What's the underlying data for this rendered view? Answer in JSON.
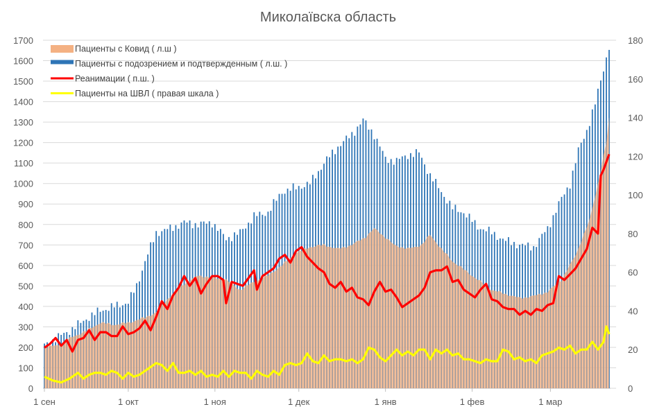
{
  "chart_data": {
    "type": "bar",
    "title": "Миколаївска область",
    "xlabel": "",
    "ylabel": "",
    "y_left": {
      "range": [
        0,
        1700
      ],
      "ticks": [
        0,
        100,
        200,
        300,
        400,
        500,
        600,
        700,
        800,
        900,
        1000,
        1100,
        1200,
        1300,
        1400,
        1500,
        1600,
        1700
      ]
    },
    "y_right": {
      "range": [
        0,
        180
      ],
      "ticks": [
        0,
        20,
        40,
        60,
        80,
        100,
        120,
        140,
        160,
        180
      ]
    },
    "x_ticks": [
      {
        "label": "1 сен",
        "day": 0
      },
      {
        "label": "1 окт",
        "day": 30
      },
      {
        "label": "1 ноя",
        "day": 61
      },
      {
        "label": "1 дек",
        "day": 91
      },
      {
        "label": "1 янв",
        "day": 122
      },
      {
        "label": "1 фев",
        "day": 153
      },
      {
        "label": "1 мар",
        "day": 181
      }
    ],
    "x_range_days": [
      0,
      202
    ],
    "grid": "horizontal",
    "legend_position": "top-left",
    "series": [
      {
        "name": "Пациенты с Ковид ( л.ш )",
        "kind": "area",
        "axis": "left",
        "color": "#f4b183",
        "anchors": [
          [
            0,
            200
          ],
          [
            5,
            210
          ],
          [
            10,
            250
          ],
          [
            15,
            280
          ],
          [
            20,
            320
          ],
          [
            25,
            310
          ],
          [
            30,
            320
          ],
          [
            35,
            340
          ],
          [
            40,
            370
          ],
          [
            45,
            450
          ],
          [
            50,
            510
          ],
          [
            55,
            550
          ],
          [
            60,
            540
          ],
          [
            65,
            530
          ],
          [
            70,
            480
          ],
          [
            75,
            520
          ],
          [
            80,
            550
          ],
          [
            85,
            600
          ],
          [
            90,
            660
          ],
          [
            95,
            690
          ],
          [
            100,
            700
          ],
          [
            105,
            680
          ],
          [
            110,
            700
          ],
          [
            115,
            740
          ],
          [
            118,
            780
          ],
          [
            120,
            760
          ],
          [
            125,
            700
          ],
          [
            130,
            680
          ],
          [
            135,
            700
          ],
          [
            138,
            750
          ],
          [
            142,
            680
          ],
          [
            146,
            620
          ],
          [
            150,
            580
          ],
          [
            155,
            530
          ],
          [
            160,
            480
          ],
          [
            165,
            460
          ],
          [
            170,
            440
          ],
          [
            175,
            450
          ],
          [
            180,
            470
          ],
          [
            185,
            530
          ],
          [
            190,
            650
          ],
          [
            195,
            820
          ],
          [
            198,
            1000
          ],
          [
            201,
            1200
          ],
          [
            202,
            1320
          ]
        ]
      },
      {
        "name": "Пациенты с подозрением и подтвержденным ( л.ш. )",
        "kind": "bar",
        "axis": "left",
        "color": "#2e75b6",
        "anchors": [
          [
            0,
            210
          ],
          [
            5,
            250
          ],
          [
            10,
            290
          ],
          [
            15,
            340
          ],
          [
            20,
            380
          ],
          [
            25,
            400
          ],
          [
            30,
            420
          ],
          [
            33,
            500
          ],
          [
            36,
            620
          ],
          [
            40,
            760
          ],
          [
            45,
            780
          ],
          [
            50,
            810
          ],
          [
            55,
            800
          ],
          [
            60,
            810
          ],
          [
            65,
            730
          ],
          [
            70,
            760
          ],
          [
            75,
            840
          ],
          [
            80,
            860
          ],
          [
            85,
            960
          ],
          [
            90,
            980
          ],
          [
            95,
            1000
          ],
          [
            100,
            1100
          ],
          [
            105,
            1180
          ],
          [
            110,
            1240
          ],
          [
            114,
            1310
          ],
          [
            118,
            1240
          ],
          [
            122,
            1120
          ],
          [
            126,
            1110
          ],
          [
            130,
            1140
          ],
          [
            134,
            1150
          ],
          [
            138,
            1040
          ],
          [
            142,
            960
          ],
          [
            146,
            880
          ],
          [
            150,
            860
          ],
          [
            155,
            790
          ],
          [
            160,
            760
          ],
          [
            165,
            720
          ],
          [
            170,
            700
          ],
          [
            175,
            690
          ],
          [
            180,
            780
          ],
          [
            184,
            900
          ],
          [
            188,
            1000
          ],
          [
            191,
            1160
          ],
          [
            194,
            1260
          ],
          [
            197,
            1390
          ],
          [
            200,
            1560
          ],
          [
            202,
            1670
          ]
        ]
      },
      {
        "name": "Реанимации ( п.ш. )",
        "kind": "line",
        "axis": "right",
        "color": "#ff0000",
        "anchors": [
          [
            0,
            21
          ],
          [
            2,
            23
          ],
          [
            4,
            26
          ],
          [
            6,
            22
          ],
          [
            8,
            25
          ],
          [
            10,
            19
          ],
          [
            12,
            25
          ],
          [
            14,
            26
          ],
          [
            16,
            30
          ],
          [
            18,
            25
          ],
          [
            20,
            29
          ],
          [
            22,
            29
          ],
          [
            24,
            27
          ],
          [
            26,
            27
          ],
          [
            28,
            32
          ],
          [
            30,
            28
          ],
          [
            32,
            29
          ],
          [
            34,
            31
          ],
          [
            36,
            35
          ],
          [
            38,
            30
          ],
          [
            40,
            37
          ],
          [
            42,
            45
          ],
          [
            44,
            41
          ],
          [
            46,
            48
          ],
          [
            48,
            52
          ],
          [
            50,
            58
          ],
          [
            52,
            53
          ],
          [
            54,
            57
          ],
          [
            56,
            49
          ],
          [
            58,
            54
          ],
          [
            60,
            58
          ],
          [
            62,
            58
          ],
          [
            64,
            56
          ],
          [
            65,
            44
          ],
          [
            67,
            55
          ],
          [
            69,
            54
          ],
          [
            71,
            53
          ],
          [
            73,
            57
          ],
          [
            75,
            61
          ],
          [
            76,
            51
          ],
          [
            78,
            58
          ],
          [
            80,
            60
          ],
          [
            82,
            62
          ],
          [
            84,
            67
          ],
          [
            86,
            69
          ],
          [
            88,
            65
          ],
          [
            90,
            71
          ],
          [
            92,
            73
          ],
          [
            94,
            68
          ],
          [
            96,
            65
          ],
          [
            98,
            62
          ],
          [
            100,
            60
          ],
          [
            102,
            54
          ],
          [
            104,
            52
          ],
          [
            106,
            55
          ],
          [
            108,
            50
          ],
          [
            110,
            52
          ],
          [
            112,
            47
          ],
          [
            114,
            46
          ],
          [
            116,
            43
          ],
          [
            118,
            50
          ],
          [
            120,
            55
          ],
          [
            122,
            50
          ],
          [
            124,
            51
          ],
          [
            126,
            47
          ],
          [
            128,
            42
          ],
          [
            130,
            44
          ],
          [
            132,
            46
          ],
          [
            134,
            48
          ],
          [
            136,
            52
          ],
          [
            138,
            60
          ],
          [
            140,
            61
          ],
          [
            142,
            61
          ],
          [
            144,
            63
          ],
          [
            146,
            55
          ],
          [
            148,
            56
          ],
          [
            150,
            51
          ],
          [
            152,
            49
          ],
          [
            154,
            47
          ],
          [
            156,
            51
          ],
          [
            158,
            54
          ],
          [
            160,
            46
          ],
          [
            162,
            45
          ],
          [
            164,
            42
          ],
          [
            166,
            41
          ],
          [
            168,
            41
          ],
          [
            170,
            38
          ],
          [
            172,
            40
          ],
          [
            174,
            38
          ],
          [
            176,
            41
          ],
          [
            178,
            40
          ],
          [
            180,
            43
          ],
          [
            182,
            44
          ],
          [
            184,
            58
          ],
          [
            186,
            56
          ],
          [
            188,
            59
          ],
          [
            190,
            62
          ],
          [
            192,
            67
          ],
          [
            194,
            72
          ],
          [
            196,
            83
          ],
          [
            198,
            80
          ],
          [
            199,
            110
          ],
          [
            200,
            113
          ],
          [
            202,
            121
          ]
        ]
      },
      {
        "name": "Пациенты на ШВЛ ( правая шкала )",
        "kind": "line",
        "axis": "right",
        "color": "#ffff00",
        "anchors": [
          [
            0,
            6
          ],
          [
            3,
            4
          ],
          [
            6,
            3
          ],
          [
            9,
            5
          ],
          [
            12,
            8
          ],
          [
            14,
            5
          ],
          [
            16,
            7
          ],
          [
            18,
            8
          ],
          [
            20,
            8
          ],
          [
            22,
            7
          ],
          [
            24,
            9
          ],
          [
            26,
            8
          ],
          [
            28,
            5
          ],
          [
            30,
            8
          ],
          [
            32,
            6
          ],
          [
            34,
            7
          ],
          [
            36,
            9
          ],
          [
            38,
            11
          ],
          [
            40,
            13
          ],
          [
            42,
            12
          ],
          [
            44,
            9
          ],
          [
            46,
            13
          ],
          [
            48,
            8
          ],
          [
            50,
            8
          ],
          [
            52,
            9
          ],
          [
            54,
            7
          ],
          [
            56,
            9
          ],
          [
            58,
            6
          ],
          [
            60,
            7
          ],
          [
            62,
            6
          ],
          [
            64,
            9
          ],
          [
            66,
            6
          ],
          [
            68,
            9
          ],
          [
            70,
            8
          ],
          [
            72,
            8
          ],
          [
            74,
            5
          ],
          [
            76,
            9
          ],
          [
            78,
            7
          ],
          [
            80,
            6
          ],
          [
            82,
            9
          ],
          [
            84,
            7
          ],
          [
            86,
            12
          ],
          [
            88,
            13
          ],
          [
            90,
            12
          ],
          [
            92,
            13
          ],
          [
            94,
            18
          ],
          [
            96,
            14
          ],
          [
            98,
            13
          ],
          [
            100,
            17
          ],
          [
            102,
            14
          ],
          [
            104,
            15
          ],
          [
            106,
            15
          ],
          [
            108,
            14
          ],
          [
            110,
            15
          ],
          [
            112,
            13
          ],
          [
            114,
            15
          ],
          [
            116,
            21
          ],
          [
            118,
            20
          ],
          [
            120,
            16
          ],
          [
            122,
            14
          ],
          [
            124,
            17
          ],
          [
            126,
            20
          ],
          [
            128,
            17
          ],
          [
            130,
            19
          ],
          [
            132,
            17
          ],
          [
            134,
            20
          ],
          [
            136,
            20
          ],
          [
            138,
            15
          ],
          [
            140,
            20
          ],
          [
            142,
            18
          ],
          [
            144,
            20
          ],
          [
            146,
            17
          ],
          [
            148,
            18
          ],
          [
            150,
            15
          ],
          [
            152,
            15
          ],
          [
            154,
            14
          ],
          [
            156,
            13
          ],
          [
            158,
            15
          ],
          [
            160,
            14
          ],
          [
            162,
            14
          ],
          [
            164,
            20
          ],
          [
            166,
            19
          ],
          [
            168,
            15
          ],
          [
            170,
            16
          ],
          [
            172,
            14
          ],
          [
            174,
            15
          ],
          [
            176,
            13
          ],
          [
            178,
            17
          ],
          [
            180,
            18
          ],
          [
            182,
            19
          ],
          [
            184,
            21
          ],
          [
            186,
            20
          ],
          [
            188,
            22
          ],
          [
            190,
            18
          ],
          [
            192,
            20
          ],
          [
            194,
            20
          ],
          [
            196,
            24
          ],
          [
            198,
            20
          ],
          [
            200,
            24
          ],
          [
            201,
            32
          ],
          [
            202,
            28
          ]
        ]
      }
    ],
    "note": "Series extended below with daily-resolution rendering by linear interpolation of anchors"
  }
}
